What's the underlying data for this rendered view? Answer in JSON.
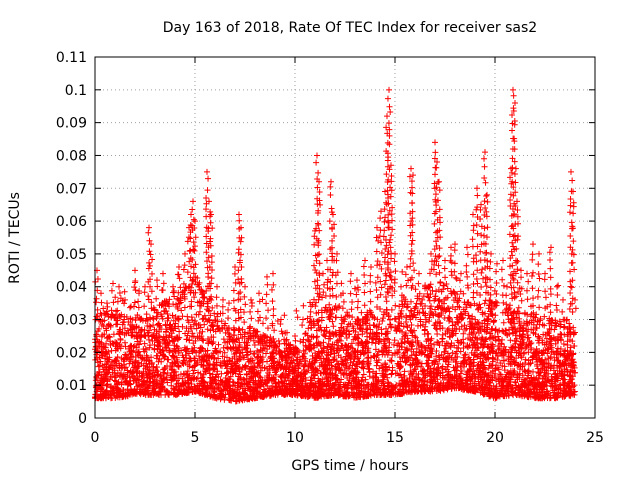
{
  "chart_data": {
    "type": "scatter",
    "title": "Day 163 of 2018, Rate Of TEC Index for receiver sas2",
    "xlabel": "GPS time / hours",
    "ylabel": "ROTI / TECUs",
    "xlim": [
      0,
      25
    ],
    "ylim": [
      0,
      0.11
    ],
    "x_ticks": [
      0,
      5,
      10,
      15,
      20,
      25
    ],
    "x_tick_labels": [
      "0",
      "5",
      "10",
      "15",
      "20",
      "25"
    ],
    "y_ticks": [
      0,
      0.01,
      0.02,
      0.03,
      0.04,
      0.05,
      0.06,
      0.07,
      0.08,
      0.09,
      0.1,
      0.11
    ],
    "y_tick_labels": [
      "0",
      "0.01",
      "0.02",
      "0.03",
      "0.04",
      "0.05",
      "0.06",
      "0.07",
      "0.08",
      "0.09",
      "0.1",
      "0.11"
    ],
    "grid": true,
    "marker": "+",
    "series_color": "#ff0000",
    "points": [
      [
        0.1,
        0.045
      ],
      [
        0.3,
        0.038
      ],
      [
        0.6,
        0.035
      ],
      [
        0.9,
        0.041
      ],
      [
        1.2,
        0.04
      ],
      [
        1.5,
        0.036
      ],
      [
        1.8,
        0.034
      ],
      [
        2.0,
        0.045
      ],
      [
        2.2,
        0.038
      ],
      [
        2.5,
        0.04
      ],
      [
        2.7,
        0.058
      ],
      [
        2.8,
        0.053
      ],
      [
        3.1,
        0.042
      ],
      [
        3.4,
        0.044
      ],
      [
        3.6,
        0.035
      ],
      [
        3.9,
        0.04
      ],
      [
        4.2,
        0.046
      ],
      [
        4.5,
        0.05
      ],
      [
        4.7,
        0.058
      ],
      [
        4.8,
        0.062
      ],
      [
        4.9,
        0.066
      ],
      [
        5.0,
        0.06
      ],
      [
        5.2,
        0.04
      ],
      [
        5.4,
        0.038
      ],
      [
        5.6,
        0.075
      ],
      [
        5.7,
        0.066
      ],
      [
        5.8,
        0.062
      ],
      [
        6.1,
        0.04
      ],
      [
        6.4,
        0.036
      ],
      [
        6.7,
        0.035
      ],
      [
        7.0,
        0.046
      ],
      [
        7.2,
        0.062
      ],
      [
        7.3,
        0.058
      ],
      [
        7.5,
        0.04
      ],
      [
        7.8,
        0.036
      ],
      [
        8.2,
        0.038
      ],
      [
        8.6,
        0.043
      ],
      [
        8.9,
        0.044
      ],
      [
        9.3,
        0.03
      ],
      [
        9.6,
        0.026
      ],
      [
        10.0,
        0.025
      ],
      [
        10.4,
        0.03
      ],
      [
        10.8,
        0.034
      ],
      [
        11.0,
        0.057
      ],
      [
        11.1,
        0.08
      ],
      [
        11.2,
        0.072
      ],
      [
        11.4,
        0.044
      ],
      [
        11.6,
        0.048
      ],
      [
        11.8,
        0.072
      ],
      [
        11.9,
        0.062
      ],
      [
        12.1,
        0.05
      ],
      [
        12.4,
        0.038
      ],
      [
        12.8,
        0.044
      ],
      [
        13.1,
        0.042
      ],
      [
        13.5,
        0.048
      ],
      [
        13.8,
        0.046
      ],
      [
        14.1,
        0.058
      ],
      [
        14.3,
        0.063
      ],
      [
        14.5,
        0.069
      ],
      [
        14.6,
        0.092
      ],
      [
        14.7,
        0.1
      ],
      [
        14.8,
        0.077
      ],
      [
        15.0,
        0.05
      ],
      [
        15.3,
        0.04
      ],
      [
        15.6,
        0.046
      ],
      [
        15.8,
        0.076
      ],
      [
        15.9,
        0.074
      ],
      [
        16.2,
        0.044
      ],
      [
        16.5,
        0.04
      ],
      [
        16.8,
        0.05
      ],
      [
        17.0,
        0.084
      ],
      [
        17.1,
        0.078
      ],
      [
        17.2,
        0.072
      ],
      [
        17.5,
        0.048
      ],
      [
        17.8,
        0.052
      ],
      [
        18.0,
        0.053
      ],
      [
        18.3,
        0.044
      ],
      [
        18.6,
        0.052
      ],
      [
        18.9,
        0.062
      ],
      [
        19.1,
        0.07
      ],
      [
        19.3,
        0.065
      ],
      [
        19.5,
        0.081
      ],
      [
        19.6,
        0.068
      ],
      [
        19.8,
        0.05
      ],
      [
        20.1,
        0.047
      ],
      [
        20.4,
        0.048
      ],
      [
        20.6,
        0.04
      ],
      [
        20.8,
        0.076
      ],
      [
        20.9,
        0.1
      ],
      [
        21.0,
        0.096
      ],
      [
        21.1,
        0.066
      ],
      [
        21.3,
        0.045
      ],
      [
        21.6,
        0.044
      ],
      [
        21.9,
        0.053
      ],
      [
        22.2,
        0.05
      ],
      [
        22.5,
        0.044
      ],
      [
        22.8,
        0.052
      ],
      [
        23.1,
        0.04
      ],
      [
        23.4,
        0.036
      ],
      [
        23.6,
        0.03
      ],
      [
        23.8,
        0.075
      ],
      [
        23.9,
        0.069
      ],
      [
        24.0,
        0.036
      ]
    ],
    "band": {
      "comment_hours": "dense scatter envelope (lower, upper) by hour",
      "x": [
        0,
        1,
        2,
        3,
        4,
        5,
        6,
        7,
        8,
        9,
        10,
        11,
        12,
        13,
        14,
        15,
        16,
        17,
        18,
        19,
        20,
        21,
        22,
        23,
        24
      ],
      "lower": [
        0.006,
        0.006,
        0.007,
        0.007,
        0.007,
        0.008,
        0.006,
        0.005,
        0.006,
        0.007,
        0.007,
        0.006,
        0.007,
        0.006,
        0.007,
        0.007,
        0.008,
        0.008,
        0.009,
        0.008,
        0.006,
        0.007,
        0.006,
        0.006,
        0.007
      ],
      "upper": [
        0.032,
        0.033,
        0.031,
        0.034,
        0.038,
        0.045,
        0.03,
        0.028,
        0.027,
        0.024,
        0.022,
        0.032,
        0.036,
        0.03,
        0.034,
        0.036,
        0.038,
        0.042,
        0.04,
        0.036,
        0.036,
        0.034,
        0.032,
        0.03,
        0.03
      ]
    }
  }
}
